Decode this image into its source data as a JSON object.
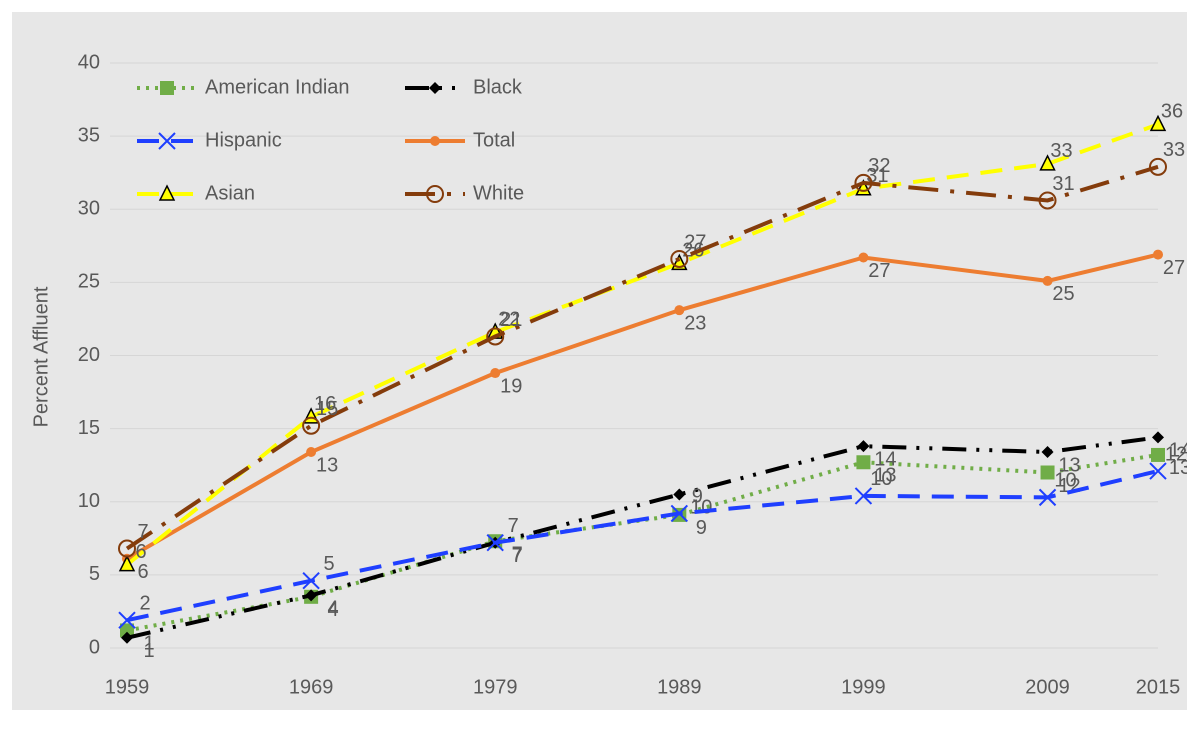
{
  "chart_data": {
    "type": "line",
    "ylabel": "Percent Affluent",
    "x": [
      1959,
      1969,
      1979,
      1989,
      1999,
      2009,
      2015
    ],
    "xlim": [
      1959,
      2015
    ],
    "xticks": [
      1959,
      1969,
      1979,
      1989,
      1999,
      2009,
      2015
    ],
    "ylim": [
      0,
      40
    ],
    "yticks": [
      0,
      5,
      10,
      15,
      20,
      25,
      30,
      35,
      40
    ],
    "grid": true,
    "legend": "upper left",
    "series": [
      {
        "name": "American Indian",
        "color": "#70ad47",
        "marker": "square",
        "dash": "dotted",
        "values": [
          1.2,
          3.5,
          7.3,
          9.1,
          12.7,
          12.0,
          13.2
        ],
        "value_labels": [
          "1",
          "4",
          "7",
          "9",
          "13",
          "12",
          "13"
        ]
      },
      {
        "name": "Black",
        "color": "#000000",
        "marker": "diamond",
        "dash": "dash-dot-dot",
        "values": [
          0.7,
          3.6,
          7.2,
          10.5,
          13.8,
          13.4,
          14.4
        ],
        "value_labels": [
          "1",
          "4",
          "7",
          "10",
          "14",
          "13",
          "14"
        ]
      },
      {
        "name": "Hispanic",
        "color": "#1f3fff",
        "marker": "x",
        "dash": "dashed",
        "values": [
          1.9,
          4.6,
          7.2,
          9.2,
          10.4,
          10.3,
          12.1
        ],
        "value_labels": [
          "2",
          "5",
          "7",
          "9",
          "10",
          "10",
          "12"
        ]
      },
      {
        "name": "Total",
        "color": "#ed7d31",
        "marker": "circle",
        "dash": "solid",
        "values": [
          6.1,
          13.4,
          18.8,
          23.1,
          26.7,
          25.1,
          26.9
        ],
        "value_labels": [
          "6",
          "13",
          "19",
          "23",
          "27",
          "25",
          "27"
        ]
      },
      {
        "name": "Asian",
        "color": "#ffff00",
        "marker": "triangle",
        "dash": "dashed",
        "values": [
          5.7,
          15.8,
          21.6,
          26.3,
          31.4,
          33.1,
          35.8
        ],
        "value_labels": [
          "6",
          "16",
          "22",
          "26",
          "31",
          "33",
          "36"
        ]
      },
      {
        "name": "White",
        "color": "#843c0c",
        "marker": "open-circle",
        "dash": "long-dash-dot",
        "values": [
          6.8,
          15.2,
          21.3,
          26.6,
          31.8,
          30.6,
          32.9
        ],
        "value_labels": [
          "7",
          "15",
          "21",
          "27",
          "32",
          "31",
          "33"
        ]
      }
    ]
  }
}
